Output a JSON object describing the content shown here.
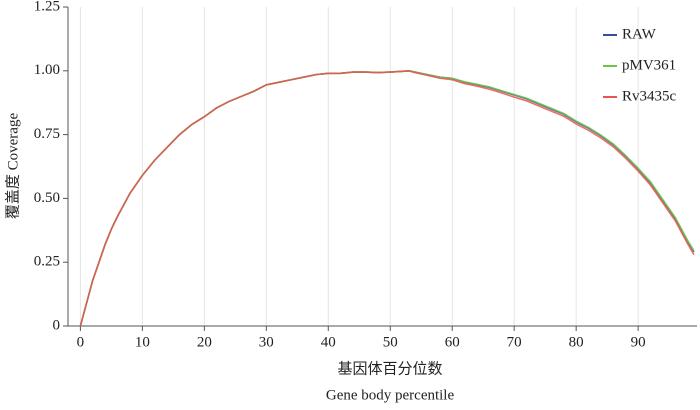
{
  "chart_data": {
    "type": "line",
    "x_label": "基因体百分位数",
    "x_label_en": "Gene body percentile",
    "y_label": "覆盖度 Coverage",
    "x": [
      0,
      1,
      2,
      3,
      4,
      5,
      6,
      8,
      10,
      12,
      14,
      16,
      18,
      20,
      22,
      24,
      26,
      28,
      30,
      32,
      34,
      36,
      38,
      40,
      42,
      44,
      46,
      48,
      50,
      52,
      53,
      54,
      56,
      58,
      60,
      62,
      64,
      66,
      68,
      70,
      72,
      74,
      76,
      78,
      80,
      82,
      84,
      86,
      88,
      90,
      92,
      94,
      96,
      98,
      99
    ],
    "series": [
      {
        "name": "RAW",
        "color": "#3b4a9c",
        "values": [
          0,
          0.09,
          0.18,
          0.25,
          0.32,
          0.38,
          0.43,
          0.52,
          0.59,
          0.65,
          0.7,
          0.75,
          0.79,
          0.82,
          0.855,
          0.88,
          0.9,
          0.92,
          0.945,
          0.955,
          0.965,
          0.975,
          0.985,
          0.99,
          0.99,
          0.995,
          0.995,
          0.993,
          0.995,
          0.998,
          1.0,
          0.995,
          0.985,
          0.975,
          0.97,
          0.955,
          0.945,
          0.935,
          0.92,
          0.905,
          0.89,
          0.87,
          0.85,
          0.83,
          0.8,
          0.775,
          0.745,
          0.71,
          0.665,
          0.615,
          0.56,
          0.49,
          0.42,
          0.33,
          0.29
        ]
      },
      {
        "name": "pMV361",
        "color": "#6cc644",
        "values": [
          0,
          0.09,
          0.18,
          0.25,
          0.32,
          0.38,
          0.43,
          0.52,
          0.59,
          0.65,
          0.7,
          0.75,
          0.79,
          0.82,
          0.855,
          0.88,
          0.9,
          0.92,
          0.945,
          0.955,
          0.965,
          0.975,
          0.985,
          0.99,
          0.99,
          0.995,
          0.995,
          0.993,
          0.995,
          0.998,
          1.0,
          0.995,
          0.985,
          0.975,
          0.97,
          0.957,
          0.947,
          0.937,
          0.922,
          0.907,
          0.893,
          0.873,
          0.853,
          0.833,
          0.803,
          0.778,
          0.748,
          0.713,
          0.668,
          0.618,
          0.565,
          0.495,
          0.425,
          0.335,
          0.295
        ]
      },
      {
        "name": "Rv3435c",
        "color": "#e8554e",
        "values": [
          0,
          0.09,
          0.18,
          0.25,
          0.32,
          0.38,
          0.43,
          0.52,
          0.59,
          0.65,
          0.7,
          0.75,
          0.79,
          0.82,
          0.855,
          0.88,
          0.9,
          0.92,
          0.945,
          0.955,
          0.965,
          0.975,
          0.985,
          0.99,
          0.99,
          0.995,
          0.995,
          0.993,
          0.995,
          0.998,
          1.0,
          0.993,
          0.982,
          0.971,
          0.965,
          0.95,
          0.94,
          0.928,
          0.913,
          0.897,
          0.882,
          0.862,
          0.842,
          0.822,
          0.792,
          0.767,
          0.737,
          0.702,
          0.657,
          0.607,
          0.552,
          0.482,
          0.412,
          0.322,
          0.28
        ]
      }
    ],
    "xlim": [
      -2,
      99.5
    ],
    "ylim": [
      0,
      1.25
    ],
    "xticks": [
      0,
      10,
      20,
      30,
      40,
      50,
      60,
      70,
      80,
      90
    ],
    "yticks": [
      0,
      0.25,
      {
        "value": 0.5,
        "label": "0.50"
      },
      0.75,
      {
        "value": 1,
        "label": "1.00"
      },
      1.25
    ],
    "grid": true,
    "legend": "upper-right"
  }
}
